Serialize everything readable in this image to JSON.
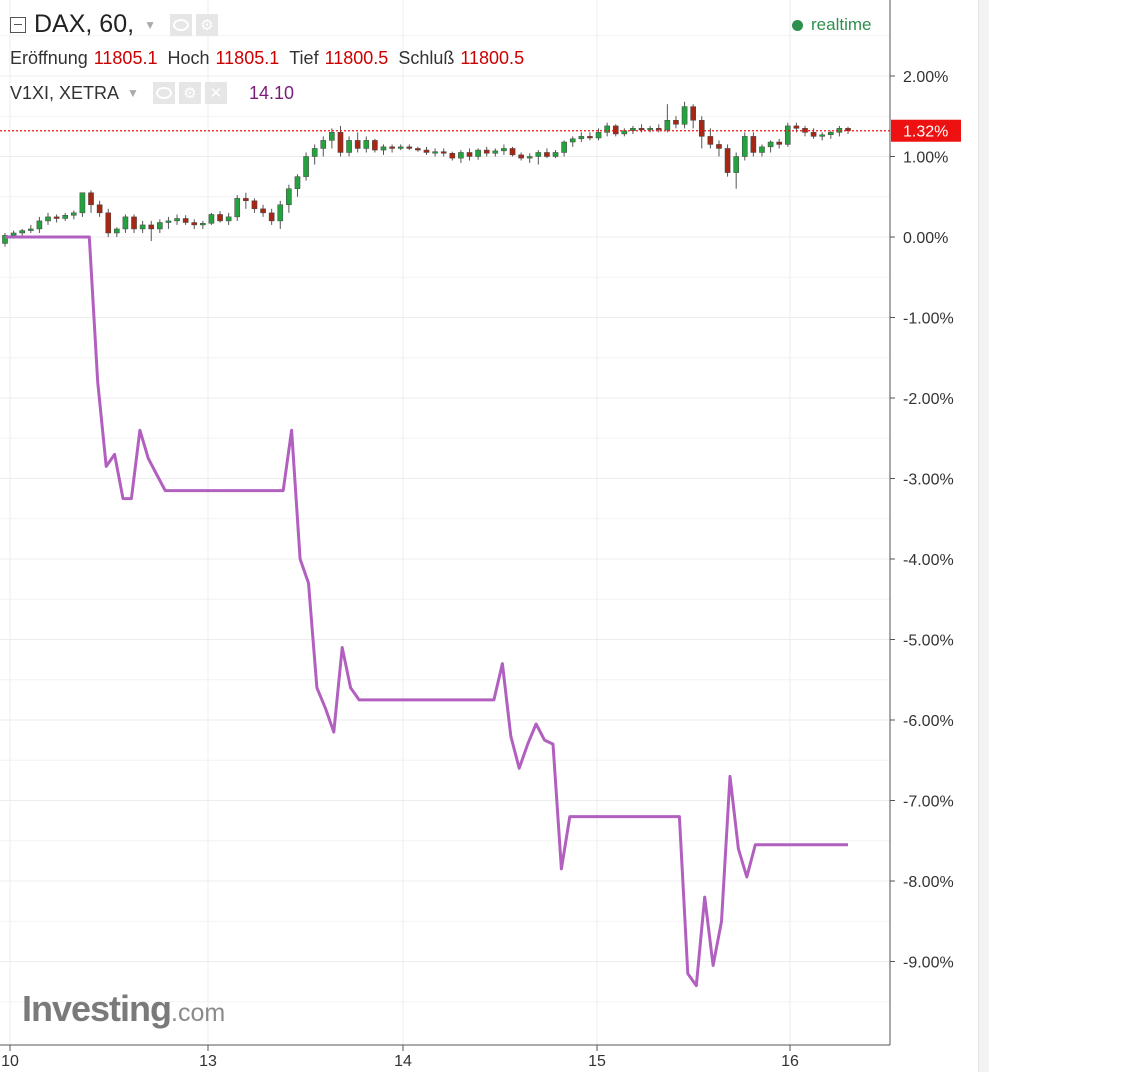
{
  "header": {
    "symbol": "DAX, 60,",
    "open_label": "Eröffnung",
    "open_value": "11805.1",
    "high_label": "Hoch",
    "high_value": "11805.1",
    "low_label": "Tief",
    "low_value": "11800.5",
    "close_label": "Schluß",
    "close_value": "11800.5",
    "realtime_label": "realtime"
  },
  "overlay": {
    "symbol": "V1XI, XETRA",
    "value": "14.10"
  },
  "logo": {
    "main": "Investing",
    "suffix": ".com"
  },
  "colors": {
    "up": "#26a13f",
    "down": "#a52714",
    "line": "#b260c0",
    "last_price": "#ee1111",
    "grid": "#ececec"
  },
  "chart_data": {
    "type": "candlestick_with_line",
    "y_unit": "%",
    "ylim": [
      -10,
      2.8
    ],
    "y_ticks": [
      2,
      1,
      0,
      -1,
      -2,
      -3,
      -4,
      -5,
      -6,
      -7,
      -8,
      -9
    ],
    "y_tick_labels": [
      "2.00%",
      "1.00%",
      "0.00%",
      "-1.00%",
      "-2.00%",
      "-3.00%",
      "-4.00%",
      "-5.00%",
      "-6.00%",
      "-7.00%",
      "-8.00%",
      "-9.00%"
    ],
    "x_ticks": [
      10,
      13,
      14,
      15,
      16
    ],
    "x_tick_labels": [
      "10",
      "13",
      "14",
      "15",
      "16"
    ],
    "last_value": 1.32,
    "last_value_label": "1.32%",
    "grid": true,
    "series": [
      {
        "kind": "candles",
        "note_values": "percent change, [open, high, low, close] per hourly bar",
        "values": [
          [
            -0.08,
            0.05,
            -0.12,
            0.02
          ],
          [
            0.02,
            0.08,
            -0.02,
            0.05
          ],
          [
            0.05,
            0.1,
            0.0,
            0.08
          ],
          [
            0.08,
            0.15,
            0.05,
            0.1
          ],
          [
            0.1,
            0.25,
            0.05,
            0.2
          ],
          [
            0.2,
            0.3,
            0.15,
            0.25
          ],
          [
            0.25,
            0.28,
            0.18,
            0.23
          ],
          [
            0.23,
            0.3,
            0.2,
            0.27
          ],
          [
            0.27,
            0.33,
            0.22,
            0.3
          ],
          [
            0.3,
            0.55,
            0.25,
            0.55
          ],
          [
            0.55,
            0.58,
            0.3,
            0.4
          ],
          [
            0.4,
            0.45,
            0.25,
            0.3
          ],
          [
            0.3,
            0.35,
            0.0,
            0.05
          ],
          [
            0.05,
            0.12,
            0.0,
            0.1
          ],
          [
            0.1,
            0.28,
            0.05,
            0.25
          ],
          [
            0.25,
            0.28,
            0.05,
            0.1
          ],
          [
            0.1,
            0.2,
            0.05,
            0.15
          ],
          [
            0.15,
            0.2,
            -0.05,
            0.1
          ],
          [
            0.1,
            0.22,
            0.05,
            0.18
          ],
          [
            0.18,
            0.25,
            0.1,
            0.2
          ],
          [
            0.2,
            0.28,
            0.15,
            0.23
          ],
          [
            0.23,
            0.27,
            0.15,
            0.18
          ],
          [
            0.18,
            0.22,
            0.1,
            0.15
          ],
          [
            0.15,
            0.2,
            0.1,
            0.17
          ],
          [
            0.17,
            0.3,
            0.15,
            0.28
          ],
          [
            0.28,
            0.32,
            0.18,
            0.2
          ],
          [
            0.2,
            0.3,
            0.15,
            0.25
          ],
          [
            0.25,
            0.52,
            0.2,
            0.48
          ],
          [
            0.48,
            0.55,
            0.35,
            0.45
          ],
          [
            0.45,
            0.48,
            0.3,
            0.35
          ],
          [
            0.35,
            0.4,
            0.25,
            0.3
          ],
          [
            0.3,
            0.35,
            0.15,
            0.2
          ],
          [
            0.2,
            0.45,
            0.1,
            0.4
          ],
          [
            0.4,
            0.65,
            0.3,
            0.6
          ],
          [
            0.6,
            0.78,
            0.5,
            0.75
          ],
          [
            0.75,
            1.05,
            0.7,
            1.0
          ],
          [
            1.0,
            1.15,
            0.9,
            1.1
          ],
          [
            1.1,
            1.25,
            1.0,
            1.2
          ],
          [
            1.2,
            1.35,
            1.1,
            1.3
          ],
          [
            1.3,
            1.38,
            1.0,
            1.05
          ],
          [
            1.05,
            1.25,
            1.0,
            1.2
          ],
          [
            1.2,
            1.3,
            1.05,
            1.1
          ],
          [
            1.1,
            1.25,
            1.05,
            1.2
          ],
          [
            1.2,
            1.22,
            1.05,
            1.08
          ],
          [
            1.08,
            1.15,
            1.02,
            1.12
          ],
          [
            1.12,
            1.15,
            1.05,
            1.1
          ],
          [
            1.1,
            1.15,
            1.08,
            1.12
          ],
          [
            1.12,
            1.15,
            1.08,
            1.1
          ],
          [
            1.1,
            1.12,
            1.06,
            1.08
          ],
          [
            1.08,
            1.12,
            1.02,
            1.05
          ],
          [
            1.05,
            1.1,
            1.0,
            1.06
          ],
          [
            1.06,
            1.1,
            1.0,
            1.04
          ],
          [
            1.04,
            1.06,
            0.95,
            0.98
          ],
          [
            0.98,
            1.08,
            0.92,
            1.05
          ],
          [
            1.05,
            1.1,
            0.95,
            1.0
          ],
          [
            1.0,
            1.1,
            0.96,
            1.08
          ],
          [
            1.08,
            1.12,
            1.0,
            1.04
          ],
          [
            1.04,
            1.1,
            1.0,
            1.07
          ],
          [
            1.07,
            1.15,
            1.02,
            1.1
          ],
          [
            1.1,
            1.12,
            1.0,
            1.02
          ],
          [
            1.02,
            1.05,
            0.95,
            0.98
          ],
          [
            0.98,
            1.04,
            0.92,
            1.0
          ],
          [
            1.0,
            1.08,
            0.9,
            1.05
          ],
          [
            1.05,
            1.1,
            0.98,
            1.0
          ],
          [
            1.0,
            1.08,
            0.98,
            1.05
          ],
          [
            1.05,
            1.2,
            1.0,
            1.18
          ],
          [
            1.18,
            1.25,
            1.12,
            1.22
          ],
          [
            1.22,
            1.3,
            1.18,
            1.25
          ],
          [
            1.25,
            1.3,
            1.2,
            1.23
          ],
          [
            1.23,
            1.35,
            1.2,
            1.3
          ],
          [
            1.3,
            1.42,
            1.25,
            1.38
          ],
          [
            1.38,
            1.4,
            1.25,
            1.28
          ],
          [
            1.28,
            1.35,
            1.25,
            1.32
          ],
          [
            1.32,
            1.38,
            1.28,
            1.35
          ],
          [
            1.35,
            1.4,
            1.3,
            1.33
          ],
          [
            1.33,
            1.38,
            1.3,
            1.35
          ],
          [
            1.35,
            1.4,
            1.3,
            1.33
          ],
          [
            1.33,
            1.65,
            1.3,
            1.45
          ],
          [
            1.45,
            1.5,
            1.35,
            1.4
          ],
          [
            1.4,
            1.68,
            1.35,
            1.62
          ],
          [
            1.62,
            1.65,
            1.35,
            1.45
          ],
          [
            1.45,
            1.5,
            1.1,
            1.25
          ],
          [
            1.25,
            1.35,
            1.1,
            1.15
          ],
          [
            1.15,
            1.2,
            1.0,
            1.1
          ],
          [
            1.1,
            1.15,
            0.75,
            0.8
          ],
          [
            0.8,
            1.05,
            0.6,
            1.0
          ],
          [
            1.0,
            1.3,
            0.95,
            1.25
          ],
          [
            1.25,
            1.3,
            1.0,
            1.05
          ],
          [
            1.05,
            1.15,
            1.0,
            1.12
          ],
          [
            1.12,
            1.2,
            1.05,
            1.18
          ],
          [
            1.18,
            1.22,
            1.1,
            1.15
          ],
          [
            1.15,
            1.42,
            1.12,
            1.38
          ],
          [
            1.38,
            1.42,
            1.3,
            1.35
          ],
          [
            1.35,
            1.38,
            1.25,
            1.3
          ],
          [
            1.3,
            1.35,
            1.22,
            1.25
          ],
          [
            1.25,
            1.3,
            1.2,
            1.27
          ],
          [
            1.27,
            1.32,
            1.22,
            1.3
          ],
          [
            1.3,
            1.38,
            1.25,
            1.35
          ],
          [
            1.35,
            1.37,
            1.28,
            1.32
          ]
        ]
      },
      {
        "kind": "line",
        "note_values": "percent change, one value per hourly bar",
        "values": [
          0,
          0,
          0,
          0,
          0,
          0,
          0,
          0,
          0,
          0,
          0,
          -1.8,
          -2.85,
          -2.7,
          -3.25,
          -3.25,
          -2.4,
          -2.75,
          -2.95,
          -3.15,
          -3.15,
          -3.15,
          -3.15,
          -3.15,
          -3.15,
          -3.15,
          -3.15,
          -3.15,
          -3.15,
          -3.15,
          -3.15,
          -3.15,
          -3.15,
          -3.15,
          -2.4,
          -4.0,
          -4.3,
          -5.6,
          -5.85,
          -6.15,
          -5.1,
          -5.6,
          -5.75,
          -5.75,
          -5.75,
          -5.75,
          -5.75,
          -5.75,
          -5.75,
          -5.75,
          -5.75,
          -5.75,
          -5.75,
          -5.75,
          -5.75,
          -5.75,
          -5.75,
          -5.75,
          -5.75,
          -5.3,
          -6.2,
          -6.6,
          -6.3,
          -6.05,
          -6.25,
          -6.3,
          -7.85,
          -7.2,
          -7.2,
          -7.2,
          -7.2,
          -7.2,
          -7.2,
          -7.2,
          -7.2,
          -7.2,
          -7.2,
          -7.2,
          -7.2,
          -7.2,
          -7.2,
          -9.15,
          -9.3,
          -8.2,
          -9.05,
          -8.5,
          -6.7,
          -7.6,
          -7.95,
          -7.55,
          -7.55,
          -7.55,
          -7.55,
          -7.55,
          -7.55,
          -7.55,
          -7.55,
          -7.55,
          -7.55,
          -7.55,
          -7.55
        ]
      }
    ]
  }
}
